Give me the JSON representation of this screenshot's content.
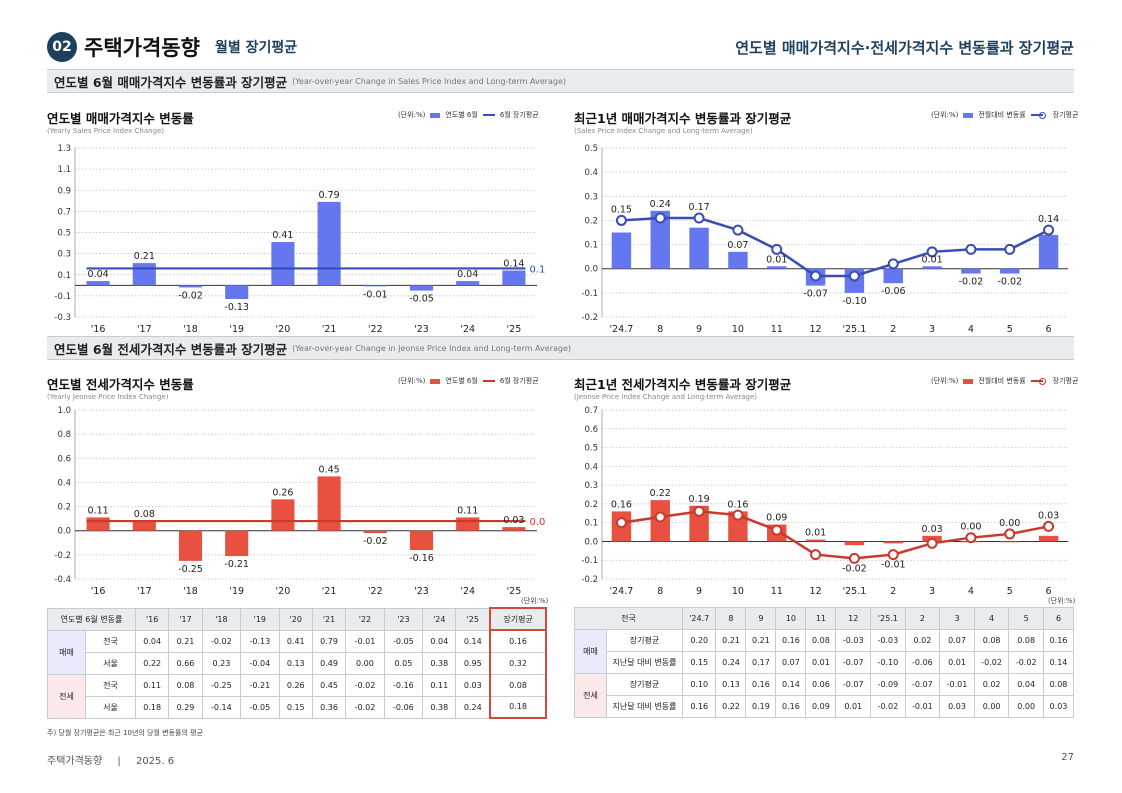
{
  "header": {
    "badge": "02",
    "title": "주택가격동향",
    "subtitle": "월별 장기평균",
    "right_title": "연도별 매매가격지수·전세가격지수 변동률과 장기평균"
  },
  "section_sales": {
    "title": "연도별 6월 매매가격지수 변동률과 장기평균",
    "title_en": "(Year-over-year Change in Sales Price Index and Long-term Average)"
  },
  "section_jeonse": {
    "title": "연도별 6월 전세가격지수 변동률과 장기평균",
    "title_en": "(Year-over-year Change in Jeonse Price Index and Long-term Average)"
  },
  "colors": {
    "sales_bar": "#6577ee",
    "sales_line": "#3a4db5",
    "jeonse_bar": "#e8513f",
    "jeonse_line": "#c93a2c",
    "header_navy": "#1f3f5e"
  },
  "chart_titles": {
    "c1": {
      "title": "연도별 매매가격지수 변동률",
      "sub": "(Yearly Sales Price Index Change)",
      "unit": "(단위:%)",
      "leg1": "연도별 6월",
      "leg2": "6월 장기평균"
    },
    "c2": {
      "title": "최근1년 매매가격지수 변동률과 장기평균",
      "sub": "(Sales Price Index Change and Long-term Average)",
      "unit": "(단위:%)",
      "leg1": "전월대비 변동률",
      "leg2": "장기평균"
    },
    "c3": {
      "title": "연도별 전세가격지수 변동률",
      "sub": "(Yearly Jeonse Price Index Change)",
      "unit": "(단위:%)",
      "leg1": "연도별 6월",
      "leg2": "6월 장기평균"
    },
    "c4": {
      "title": "최근1년 전세가격지수 변동률과 장기평균",
      "sub": "(Jeonse Price Index Change and Long-term Average)",
      "unit": "(단위:%)",
      "leg1": "전월대비 변동률",
      "leg2": "장기평균"
    }
  },
  "chart_data": [
    {
      "type": "bar",
      "id": "c1",
      "categories": [
        "'16",
        "'17",
        "'18",
        "'19",
        "'20",
        "'21",
        "'22",
        "'23",
        "'24",
        "'25"
      ],
      "values": [
        0.04,
        0.21,
        -0.02,
        -0.13,
        0.41,
        0.79,
        -0.01,
        -0.05,
        0.04,
        0.14
      ],
      "average": 0.16,
      "ylim": [
        -0.3,
        1.3
      ],
      "yticks": [
        -0.3,
        -0.1,
        0.1,
        0.3,
        0.5,
        0.7,
        0.9,
        1.1,
        1.3
      ],
      "grid": true
    },
    {
      "type": "bar",
      "id": "c2",
      "categories": [
        "'24.7",
        "8",
        "9",
        "10",
        "11",
        "12",
        "'25.1",
        "2",
        "3",
        "4",
        "5",
        "6"
      ],
      "values": [
        0.15,
        0.24,
        0.17,
        0.07,
        0.01,
        -0.07,
        -0.1,
        -0.06,
        0.01,
        -0.02,
        -0.02,
        0.14
      ],
      "line": [
        0.2,
        0.21,
        0.21,
        0.16,
        0.08,
        -0.03,
        -0.03,
        0.02,
        0.07,
        0.08,
        0.08,
        0.16
      ],
      "ylim": [
        -0.2,
        0.5
      ],
      "yticks": [
        -0.2,
        -0.1,
        0.0,
        0.1,
        0.2,
        0.3,
        0.4,
        0.5
      ],
      "grid": true
    },
    {
      "type": "bar",
      "id": "c3",
      "categories": [
        "'16",
        "'17",
        "'18",
        "'19",
        "'20",
        "'21",
        "'22",
        "'23",
        "'24",
        "'25"
      ],
      "values": [
        0.11,
        0.08,
        -0.25,
        -0.21,
        0.26,
        0.45,
        -0.02,
        -0.16,
        0.11,
        0.03
      ],
      "average": 0.08,
      "ylim": [
        -0.4,
        1.0
      ],
      "yticks": [
        -0.4,
        -0.2,
        0.0,
        0.2,
        0.4,
        0.6,
        0.8,
        1.0
      ],
      "grid": true
    },
    {
      "type": "bar",
      "id": "c4",
      "categories": [
        "'24.7",
        "8",
        "9",
        "10",
        "11",
        "12",
        "'25.1",
        "2",
        "3",
        "4",
        "5",
        "6"
      ],
      "values": [
        0.16,
        0.22,
        0.19,
        0.16,
        0.09,
        0.01,
        -0.02,
        -0.01,
        0.03,
        0.0,
        0.0,
        0.03
      ],
      "line": [
        0.1,
        0.13,
        0.16,
        0.14,
        0.06,
        -0.07,
        -0.09,
        -0.07,
        -0.01,
        0.02,
        0.04,
        0.08
      ],
      "ylim": [
        -0.2,
        0.7
      ],
      "yticks": [
        -0.2,
        -0.1,
        0.0,
        0.1,
        0.2,
        0.3,
        0.4,
        0.5,
        0.6,
        0.7
      ],
      "grid": true
    }
  ],
  "label_texts": {
    "c1": [
      "0.04",
      "0.21",
      "-0.02",
      "-0.13",
      "0.41",
      "0.79",
      "-0.01",
      "-0.05",
      "0.04",
      "0.14"
    ],
    "c1_avg": "0.16",
    "c2": [
      "0.15",
      "0.24",
      "0.17",
      "0.07",
      "0.01",
      "-0.07",
      "-0.10",
      "-0.06",
      "0.01",
      "-0.02",
      "-0.02",
      "0.14"
    ],
    "c3": [
      "0.11",
      "0.08",
      "-0.25",
      "-0.21",
      "0.26",
      "0.45",
      "-0.02",
      "-0.16",
      "0.11",
      "0.03"
    ],
    "c3_avg": "0.08",
    "c4": [
      "0.16",
      "0.22",
      "0.19",
      "0.16",
      "0.09",
      "0.01",
      "-0.02",
      "-0.01",
      "0.03",
      "0.00",
      "0.00",
      "0.03"
    ]
  },
  "table_left": {
    "unit": "(단위:%)",
    "header": [
      "연도별 6월 변동률",
      "'16",
      "'17",
      "'18",
      "'19",
      "'20",
      "'21",
      "'22",
      "'23",
      "'24",
      "'25",
      "장기평균"
    ],
    "groups": [
      {
        "name": "매매",
        "rows": [
          {
            "label": "전국",
            "values": [
              "0.04",
              "0.21",
              "-0.02",
              "-0.13",
              "0.41",
              "0.79",
              "-0.01",
              "-0.05",
              "0.04",
              "0.14",
              "0.16"
            ]
          },
          {
            "label": "서울",
            "values": [
              "0.22",
              "0.66",
              "0.23",
              "-0.04",
              "0.13",
              "0.49",
              "0.00",
              "0.05",
              "0.38",
              "0.95",
              "0.32"
            ]
          }
        ]
      },
      {
        "name": "전세",
        "rows": [
          {
            "label": "전국",
            "values": [
              "0.11",
              "0.08",
              "-0.25",
              "-0.21",
              "0.26",
              "0.45",
              "-0.02",
              "-0.16",
              "0.11",
              "0.03",
              "0.08"
            ]
          },
          {
            "label": "서울",
            "values": [
              "0.18",
              "0.29",
              "-0.14",
              "-0.05",
              "0.15",
              "0.36",
              "-0.02",
              "-0.06",
              "0.38",
              "0.24",
              "0.18"
            ]
          }
        ]
      }
    ],
    "note": "주) 당월 장기평균은 최근 10년의 당월 변동률의 평균"
  },
  "table_right": {
    "unit": "(단위:%)",
    "header": [
      "전국",
      "'24.7",
      "8",
      "9",
      "10",
      "11",
      "12",
      "'25.1",
      "2",
      "3",
      "4",
      "5",
      "6"
    ],
    "groups": [
      {
        "name": "매매",
        "rows": [
          {
            "label": "장기평균",
            "values": [
              "0.20",
              "0.21",
              "0.21",
              "0.16",
              "0.08",
              "-0.03",
              "-0.03",
              "0.02",
              "0.07",
              "0.08",
              "0.08",
              "0.16"
            ]
          },
          {
            "label": "지난달 대비 변동률",
            "values": [
              "0.15",
              "0.24",
              "0.17",
              "0.07",
              "0.01",
              "-0.07",
              "-0.10",
              "-0.06",
              "0.01",
              "-0.02",
              "-0.02",
              "0.14"
            ]
          }
        ]
      },
      {
        "name": "전세",
        "rows": [
          {
            "label": "장기평균",
            "values": [
              "0.10",
              "0.13",
              "0.16",
              "0.14",
              "0.06",
              "-0.07",
              "-0.09",
              "-0.07",
              "-0.01",
              "0.02",
              "0.04",
              "0.08"
            ]
          },
          {
            "label": "지난달 대비 변동률",
            "values": [
              "0.16",
              "0.22",
              "0.19",
              "0.16",
              "0.09",
              "0.01",
              "-0.02",
              "-0.01",
              "0.03",
              "0.00",
              "0.00",
              "0.03"
            ]
          }
        ]
      }
    ]
  },
  "footer": {
    "left": "주택가격동향",
    "sep": "|",
    "date": "2025. 6",
    "page": "27"
  }
}
